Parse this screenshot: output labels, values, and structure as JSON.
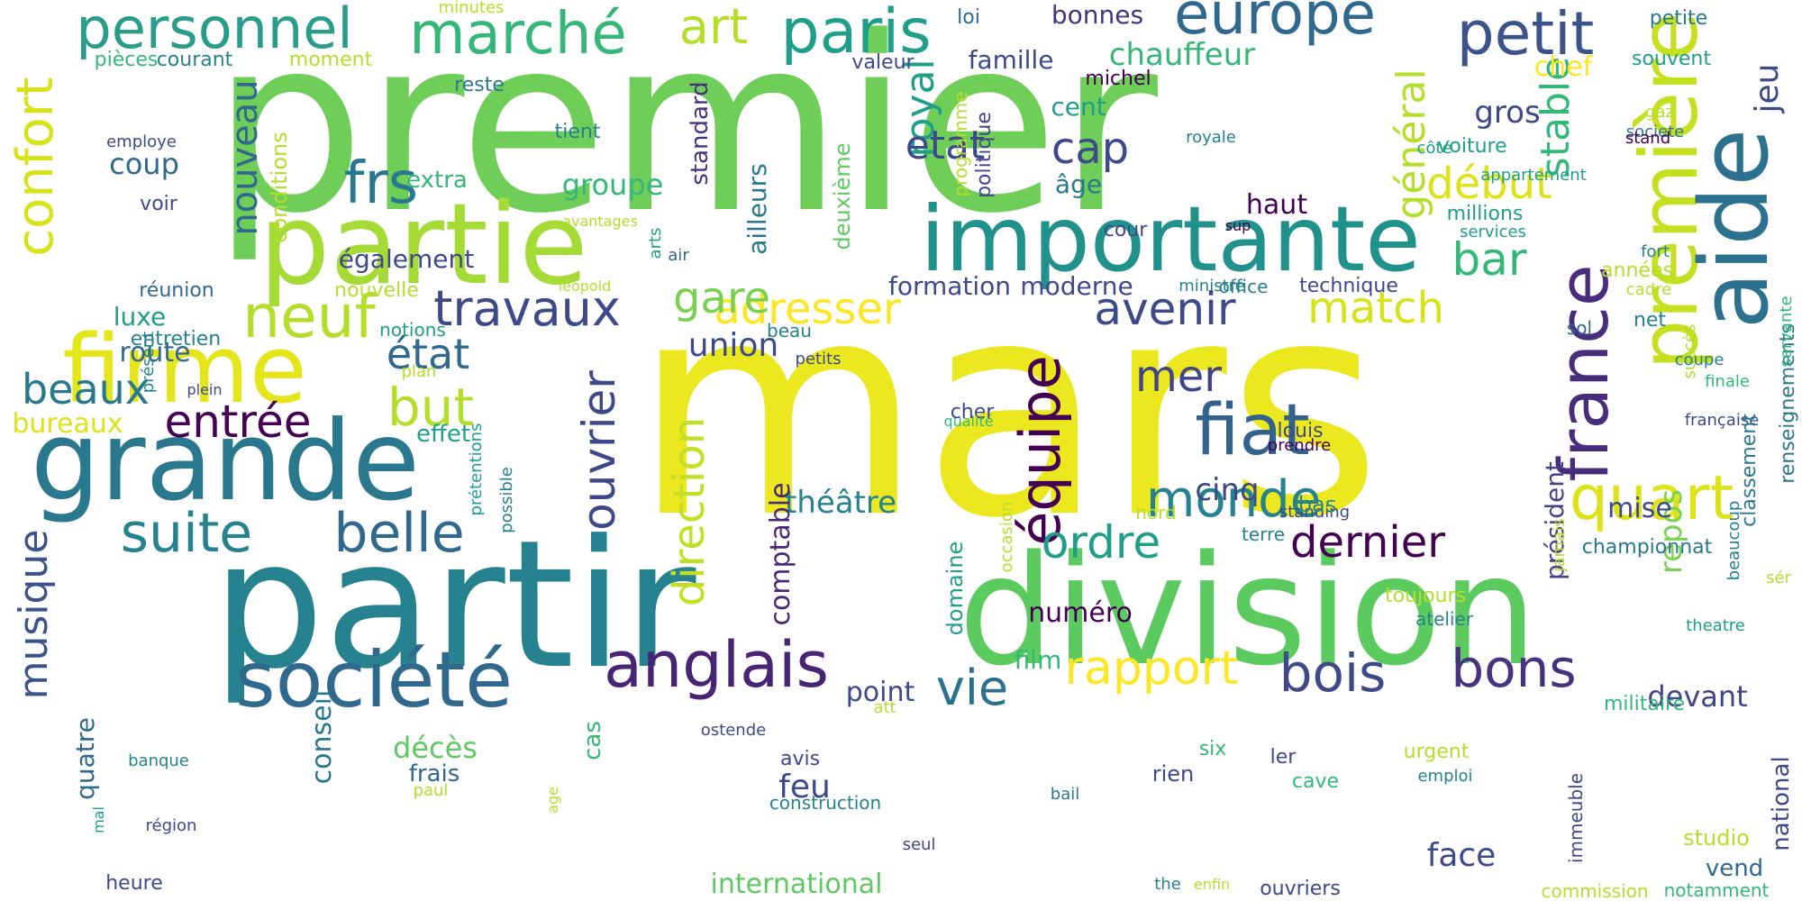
{
  "palette": {
    "background": "#ffffff",
    "colors": [
      "#fde725",
      "#b5de2b",
      "#6ece58",
      "#35b779",
      "#1f9e89",
      "#26828e",
      "#31688e",
      "#3e4989",
      "#482878",
      "#440154"
    ]
  },
  "words": [
    {
      "text": "premier",
      "color": "#6ece58"
    },
    {
      "text": "mars",
      "color": "#ece81f"
    },
    {
      "text": "partir",
      "color": "#26828e"
    },
    {
      "text": "division",
      "color": "#5ccb5f"
    },
    {
      "text": "partie",
      "color": "#a5db36"
    },
    {
      "text": "importante",
      "color": "#21918c"
    },
    {
      "text": "grande",
      "color": "#2a788e"
    },
    {
      "text": "firme",
      "color": "#e4e51a"
    },
    {
      "text": "société",
      "color": "#31688e"
    },
    {
      "text": "première",
      "color": "#c5e021"
    },
    {
      "text": "aide",
      "color": "#2c728e"
    },
    {
      "text": "france",
      "color": "#472d7b"
    },
    {
      "text": "fiat",
      "color": "#33638d"
    },
    {
      "text": "anglais",
      "color": "#482475"
    },
    {
      "text": "personnel",
      "color": "#2a9d8a"
    },
    {
      "text": "marché",
      "color": "#35b779"
    },
    {
      "text": "europe",
      "color": "#31688e"
    },
    {
      "text": "petit",
      "color": "#3b528b"
    },
    {
      "text": "paris",
      "color": "#1f9e89"
    },
    {
      "text": "art",
      "color": "#b5de2b"
    },
    {
      "text": "frs",
      "color": "#2a788e"
    },
    {
      "text": "neuf",
      "color": "#b5de2b"
    },
    {
      "text": "confort",
      "color": "#d8e219"
    },
    {
      "text": "équipe",
      "color": "#440154"
    },
    {
      "text": "suite",
      "color": "#26828e"
    },
    {
      "text": "belle",
      "color": "#31688e"
    },
    {
      "text": "rapport",
      "color": "#fde725"
    },
    {
      "text": "bois",
      "color": "#3e4989"
    },
    {
      "text": "bons",
      "color": "#46337e"
    },
    {
      "text": "vie",
      "color": "#2c728e"
    },
    {
      "text": "quart",
      "color": "#dde318"
    },
    {
      "text": "monde",
      "color": "#26828e"
    },
    {
      "text": "ordre",
      "color": "#1f9e89"
    },
    {
      "text": "dernier",
      "color": "#440154"
    },
    {
      "text": "direction",
      "color": "#c2df23"
    },
    {
      "text": "ouvrier",
      "color": "#3e4989"
    },
    {
      "text": "travaux",
      "color": "#3e4989"
    },
    {
      "text": "avenir",
      "color": "#3e4989"
    },
    {
      "text": "match",
      "color": "#d8e219"
    },
    {
      "text": "adresser",
      "color": "#fde725"
    },
    {
      "text": "entrée",
      "color": "#440154"
    },
    {
      "text": "but",
      "color": "#b5de2b"
    },
    {
      "text": "état",
      "color": "#31688e"
    },
    {
      "text": "mer",
      "color": "#414487"
    },
    {
      "text": "musique",
      "color": "#3b528b"
    },
    {
      "text": "royal",
      "color": "#1f9e89"
    },
    {
      "text": "nouveau",
      "color": "#31688e"
    },
    {
      "text": "cap",
      "color": "#3e4989"
    },
    {
      "text": "etat",
      "color": "#3e4989"
    },
    {
      "text": "début",
      "color": "#dde318"
    },
    {
      "text": "général",
      "color": "#b5de2b"
    },
    {
      "text": "stable",
      "color": "#35b779"
    },
    {
      "text": "jeu",
      "color": "#3e4989"
    },
    {
      "text": "bar",
      "color": "#35b779"
    },
    {
      "text": "gare",
      "color": "#7ad151"
    },
    {
      "text": "beaux",
      "color": "#2a788e"
    },
    {
      "text": "théâtre",
      "color": "#26828e"
    },
    {
      "text": "union",
      "color": "#3e4989"
    },
    {
      "text": "chauffeur",
      "color": "#35b779"
    },
    {
      "text": "face",
      "color": "#3e4989"
    },
    {
      "text": "feu",
      "color": "#3e4989"
    },
    {
      "text": "cinq",
      "color": "#3e4989"
    },
    {
      "text": "repos",
      "color": "#7ad151"
    },
    {
      "text": "président",
      "color": "#414487"
    },
    {
      "text": "renseignements",
      "color": "#2a788e"
    },
    {
      "text": "gros",
      "color": "#3e4989"
    },
    {
      "text": "chef",
      "color": "#fde725"
    },
    {
      "text": "groupe",
      "color": "#35b779"
    },
    {
      "text": "coup",
      "color": "#31688e"
    },
    {
      "text": "voiture",
      "color": "#1f9e89"
    },
    {
      "text": "international",
      "color": "#5ec962"
    },
    {
      "text": "devant",
      "color": "#414487"
    },
    {
      "text": "numéro",
      "color": "#440154"
    },
    {
      "text": "comptable",
      "color": "#482878"
    },
    {
      "text": "quatre",
      "color": "#31688e"
    },
    {
      "text": "décès",
      "color": "#5ec962"
    },
    {
      "text": "conseil",
      "color": "#2a788e"
    },
    {
      "text": "cas",
      "color": "#35b779"
    },
    {
      "text": "point",
      "color": "#3e4989"
    },
    {
      "text": "film",
      "color": "#35b779"
    },
    {
      "text": "formation",
      "color": "#3e4989"
    },
    {
      "text": "moderne",
      "color": "#3e4989"
    },
    {
      "text": "haut",
      "color": "#440154"
    },
    {
      "text": "ailleurs",
      "color": "#2a788e"
    },
    {
      "text": "standard",
      "color": "#46337e"
    },
    {
      "text": "deuxième",
      "color": "#5ec962"
    },
    {
      "text": "luxe",
      "color": "#1f9e89"
    },
    {
      "text": "route",
      "color": "#31688e"
    },
    {
      "text": "également",
      "color": "#3e4989"
    },
    {
      "text": "extra",
      "color": "#35b779"
    },
    {
      "text": "conditions",
      "color": "#b5de2b"
    },
    {
      "text": "âge",
      "color": "#2a788e"
    },
    {
      "text": "cent",
      "color": "#1f9e89"
    },
    {
      "text": "famille",
      "color": "#3e4989"
    },
    {
      "text": "valeur",
      "color": "#3e4989"
    },
    {
      "text": "loi",
      "color": "#31688e"
    },
    {
      "text": "bonnes",
      "color": "#46337e"
    },
    {
      "text": "petite",
      "color": "#2a788e"
    },
    {
      "text": "souvent",
      "color": "#1f9e89"
    },
    {
      "text": "programme",
      "color": "#b5de2b"
    },
    {
      "text": "politique",
      "color": "#414487"
    },
    {
      "text": "pièces",
      "color": "#35b779"
    },
    {
      "text": "courant",
      "color": "#26828e"
    },
    {
      "text": "moment",
      "color": "#b5de2b"
    },
    {
      "text": "minutes",
      "color": "#b5de2b"
    },
    {
      "text": "reste",
      "color": "#2a788e"
    },
    {
      "text": "michel",
      "color": "#440154"
    },
    {
      "text": "tient",
      "color": "#26828e"
    },
    {
      "text": "employe",
      "color": "#3e4989"
    },
    {
      "text": "voir",
      "color": "#3e4989"
    },
    {
      "text": "réunion",
      "color": "#31688e"
    },
    {
      "text": "nouvelle",
      "color": "#b5de2b"
    },
    {
      "text": "léopold",
      "color": "#b5de2b"
    },
    {
      "text": "avantages",
      "color": "#b5de2b"
    },
    {
      "text": "air",
      "color": "#31688e"
    },
    {
      "text": "cour",
      "color": "#3e4989"
    },
    {
      "text": "sup",
      "color": "#440154"
    },
    {
      "text": "royale",
      "color": "#26828e"
    },
    {
      "text": "office",
      "color": "#26828e"
    },
    {
      "text": "technique",
      "color": "#3e4989"
    },
    {
      "text": "millions",
      "color": "#1f9e89"
    },
    {
      "text": "services",
      "color": "#1f9e89"
    },
    {
      "text": "années",
      "color": "#b5de2b"
    },
    {
      "text": "cadre",
      "color": "#b5de2b"
    },
    {
      "text": "fort",
      "color": "#26828e"
    },
    {
      "text": "net",
      "color": "#26828e"
    },
    {
      "text": "sol",
      "color": "#31688e"
    },
    {
      "text": "succès",
      "color": "#b5de2b"
    },
    {
      "text": "coupe",
      "color": "#26828e"
    },
    {
      "text": "servante",
      "color": "#35b779"
    },
    {
      "text": "gaz",
      "color": "#b5de2b"
    },
    {
      "text": "côté",
      "color": "#1f9e89"
    },
    {
      "text": "appartement",
      "color": "#1f9e89"
    },
    {
      "text": "societe",
      "color": "#2a788e"
    },
    {
      "text": "stand",
      "color": "#440154"
    },
    {
      "text": "finale",
      "color": "#35b779"
    },
    {
      "text": "française",
      "color": "#3e4989"
    },
    {
      "text": "classement",
      "color": "#2a788e"
    },
    {
      "text": "championnat",
      "color": "#2a788e"
    },
    {
      "text": "mise",
      "color": "#3e4989"
    },
    {
      "text": "sér",
      "color": "#b5de2b"
    },
    {
      "text": "beaucoup",
      "color": "#26828e"
    },
    {
      "text": "theatre",
      "color": "#1f9e89"
    },
    {
      "text": "militaire",
      "color": "#35b779"
    },
    {
      "text": "immeuble",
      "color": "#3e4989"
    },
    {
      "text": "national",
      "color": "#3e4989"
    },
    {
      "text": "studio",
      "color": "#b5de2b"
    },
    {
      "text": "notamment",
      "color": "#35b779"
    },
    {
      "text": "vend",
      "color": "#31688e"
    },
    {
      "text": "commission",
      "color": "#b5de2b"
    },
    {
      "text": "urgent",
      "color": "#b5de2b"
    },
    {
      "text": "emploi",
      "color": "#26828e"
    },
    {
      "text": "cave",
      "color": "#35b779"
    },
    {
      "text": "ouvriers",
      "color": "#3e4989"
    },
    {
      "text": "enfin",
      "color": "#b5de2b"
    },
    {
      "text": "the",
      "color": "#26828e"
    },
    {
      "text": "bail",
      "color": "#2a788e"
    },
    {
      "text": "rien",
      "color": "#3e4989"
    },
    {
      "text": "ler",
      "color": "#3e4989"
    },
    {
      "text": "six",
      "color": "#35b779"
    },
    {
      "text": "toujours",
      "color": "#b5de2b"
    },
    {
      "text": "atelier",
      "color": "#26828e"
    },
    {
      "text": "jamais",
      "color": "#b5de2b"
    },
    {
      "text": "terre",
      "color": "#26828e"
    },
    {
      "text": "standing",
      "color": "#3e4989"
    },
    {
      "text": "bas",
      "color": "#26828e"
    },
    {
      "text": "nord",
      "color": "#b5de2b"
    },
    {
      "text": "occasion",
      "color": "#b5de2b"
    },
    {
      "text": "louis",
      "color": "#3e4989"
    },
    {
      "text": "prendre",
      "color": "#440154"
    },
    {
      "text": "cher",
      "color": "#3e4989"
    },
    {
      "text": "beau",
      "color": "#26828e"
    },
    {
      "text": "petits",
      "color": "#3e4989"
    },
    {
      "text": "qualité",
      "color": "#35b779"
    },
    {
      "text": "arts",
      "color": "#1f9e89"
    },
    {
      "text": "ministre",
      "color": "#26828e"
    },
    {
      "text": "notions",
      "color": "#1f9e89"
    },
    {
      "text": "entretien",
      "color": "#26828e"
    },
    {
      "text": "plan",
      "color": "#b5de2b"
    },
    {
      "text": "plein",
      "color": "#3e4989"
    },
    {
      "text": "présent",
      "color": "#26828e"
    },
    {
      "text": "bureaux",
      "color": "#dde318"
    },
    {
      "text": "effet",
      "color": "#1f9e89"
    },
    {
      "text": "prétentions",
      "color": "#1f9e89"
    },
    {
      "text": "possible",
      "color": "#26828e"
    },
    {
      "text": "domaine",
      "color": "#1f9e89"
    },
    {
      "text": "att",
      "color": "#b5de2b"
    },
    {
      "text": "ostende",
      "color": "#3e4989"
    },
    {
      "text": "avis",
      "color": "#3e4989"
    },
    {
      "text": "frais",
      "color": "#31688e"
    },
    {
      "text": "paul",
      "color": "#b5de2b"
    },
    {
      "text": "age",
      "color": "#b5de2b"
    },
    {
      "text": "construction",
      "color": "#26828e"
    },
    {
      "text": "mal",
      "color": "#1f9e89"
    },
    {
      "text": "banque",
      "color": "#26828e"
    },
    {
      "text": "région",
      "color": "#3e4989"
    },
    {
      "text": "seul",
      "color": "#3e4989"
    },
    {
      "text": "heure",
      "color": "#3e4989"
    }
  ]
}
